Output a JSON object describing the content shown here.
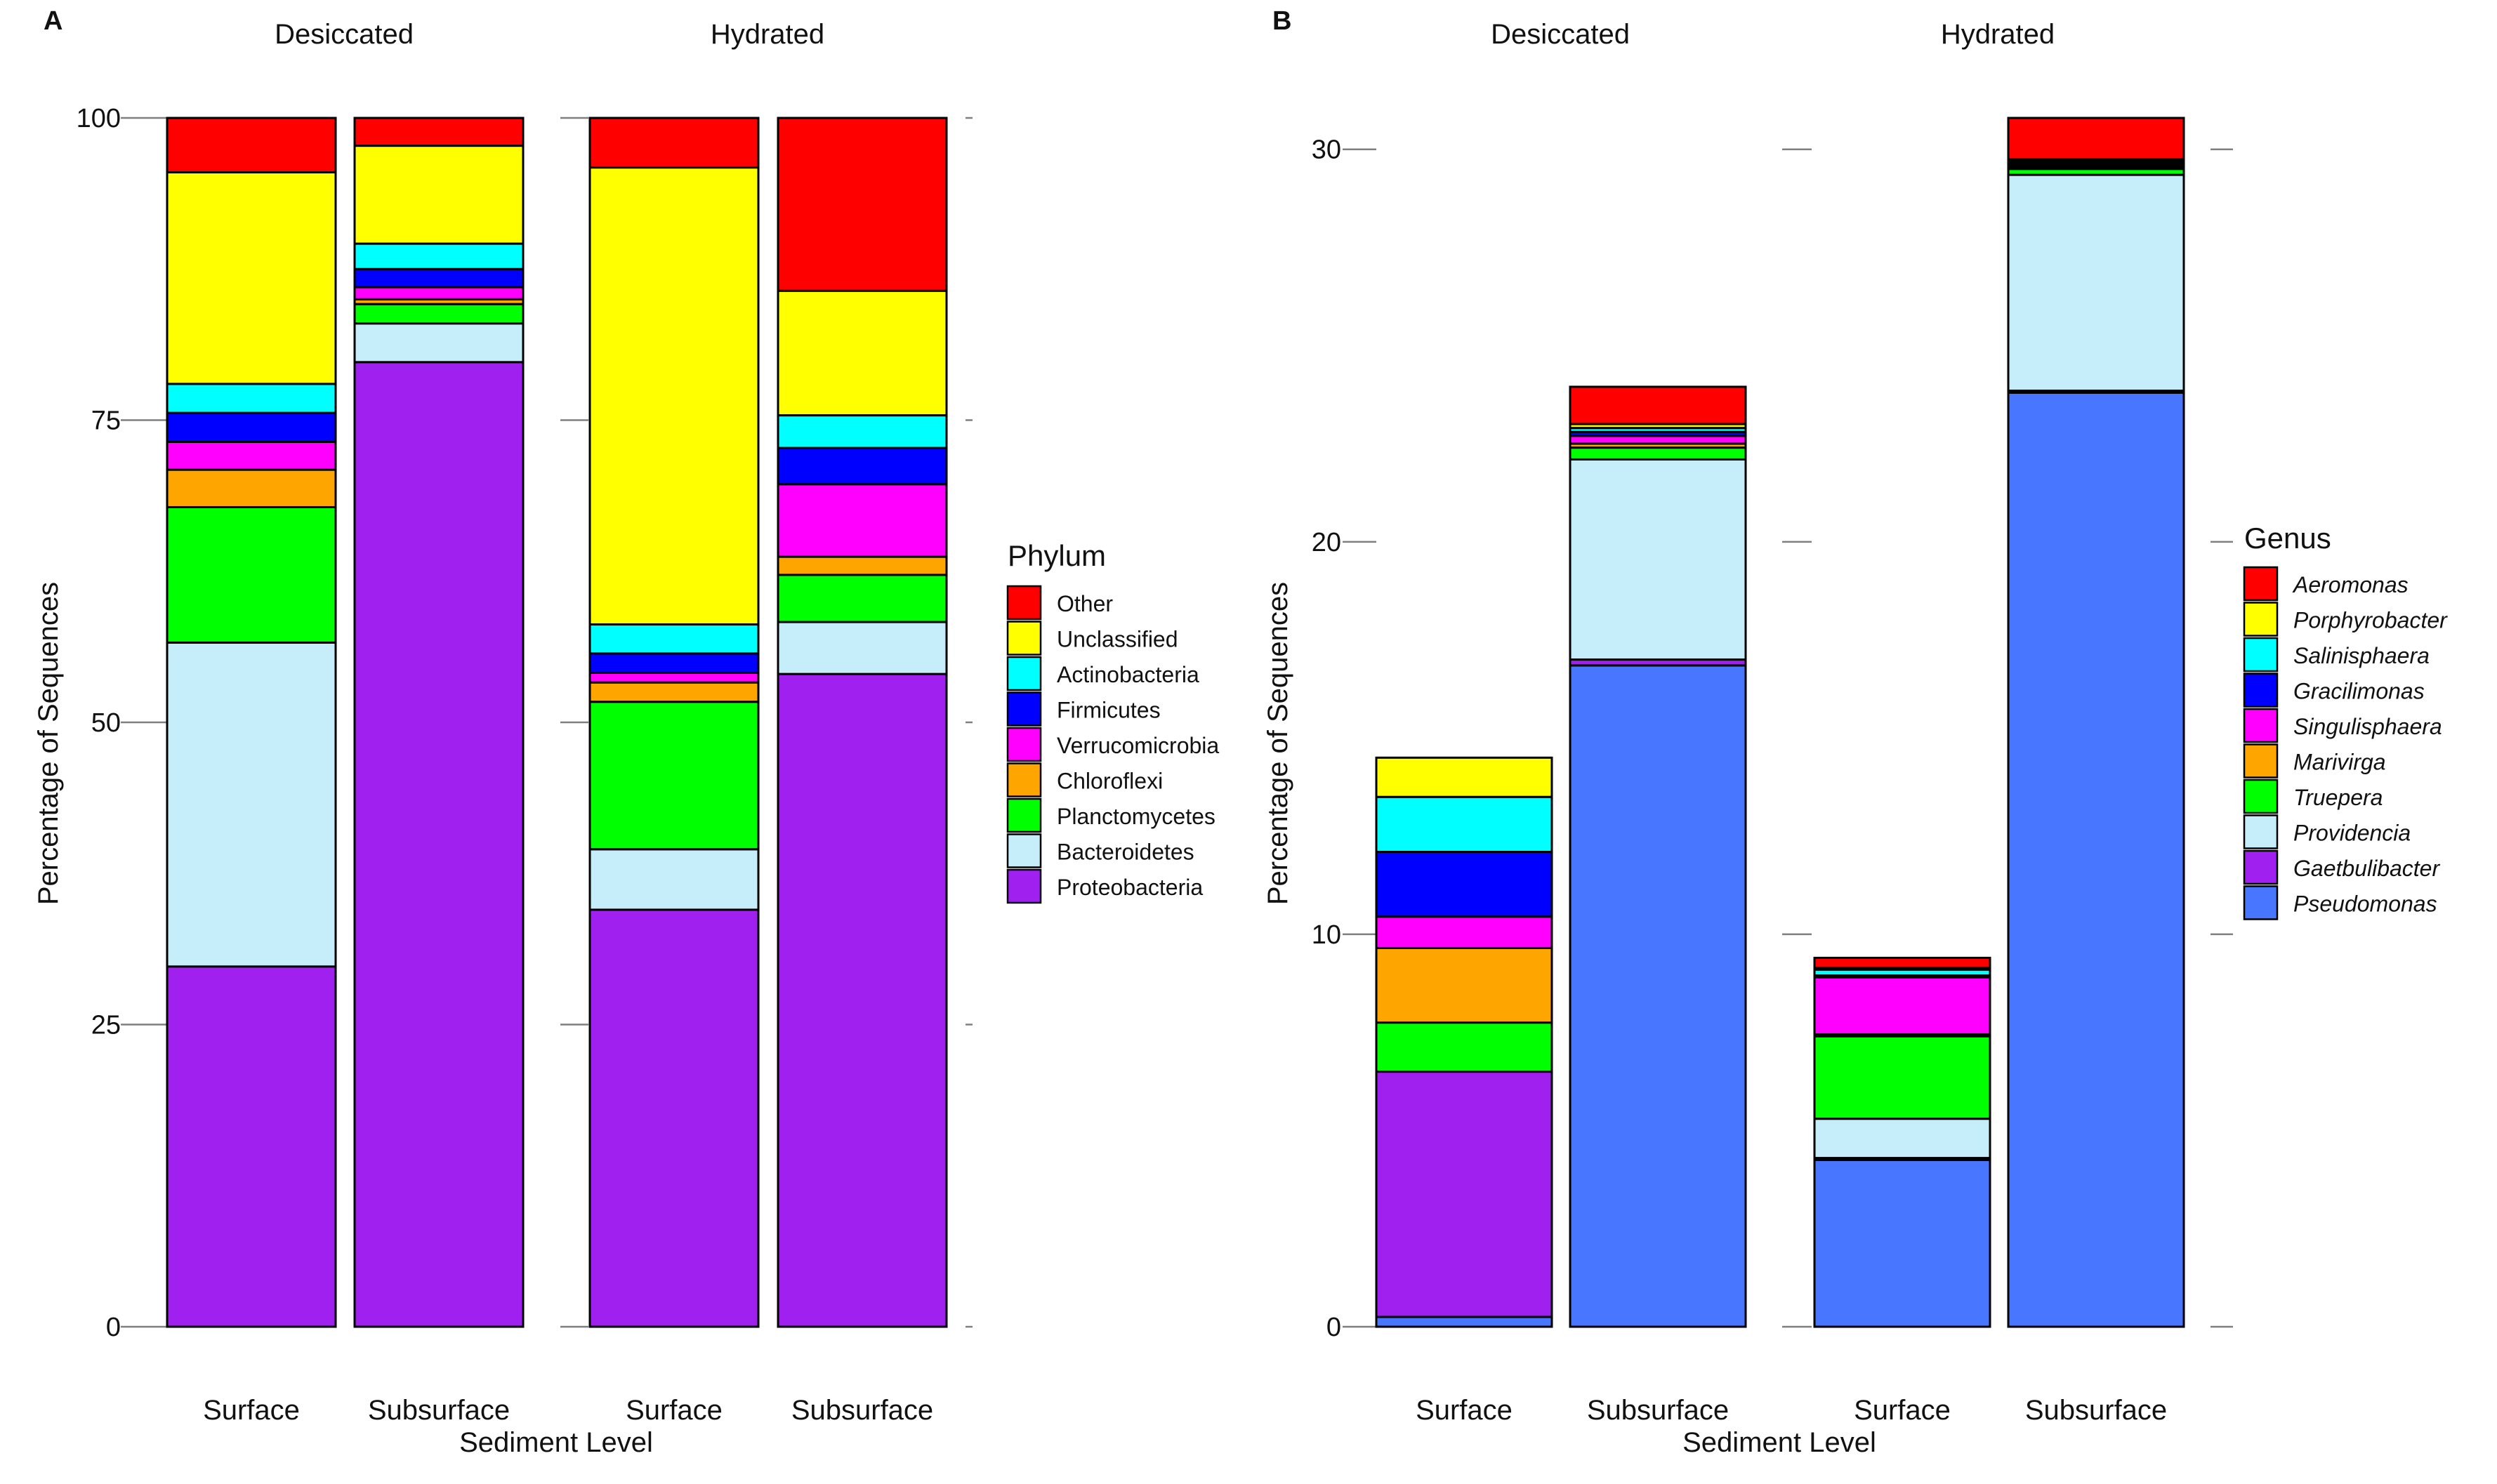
{
  "chart_data": [
    {
      "panel": "A",
      "type": "stacked-bar",
      "xlabel": "Sediment Level",
      "ylabel": "Percentage of Sequences",
      "ylim": [
        0,
        100
      ],
      "yticks": [
        "0",
        "25",
        "50",
        "75",
        "100"
      ],
      "facets": [
        "Desiccated",
        "Hydrated"
      ],
      "x_labels": [
        "Surface",
        "Subsurface"
      ],
      "legend_title": "Phylum",
      "legend_italic": false,
      "stack_order": [
        "Proteobacteria",
        "Bacteroidetes",
        "Planctomycetes",
        "Chloroflexi",
        "Verrucomicrobia",
        "Firmicutes",
        "Actinobacteria",
        "Unclassified",
        "Other"
      ],
      "legend": [
        "Other",
        "Unclassified",
        "Actinobacteria",
        "Firmicutes",
        "Verrucomicrobia",
        "Chloroflexi",
        "Planctomycetes",
        "Bacteroidetes",
        "Proteobacteria"
      ],
      "colors": {
        "Other": "#ff0000",
        "Unclassified": "#ffff00",
        "Actinobacteria": "#00ffff",
        "Firmicutes": "#0000ff",
        "Verrucomicrobia": "#ff00ff",
        "Chloroflexi": "#ffa500",
        "Planctomycetes": "#00ff00",
        "Bacteroidetes": "#c6eefa",
        "Proteobacteria": "#a020f0"
      },
      "bars": [
        {
          "facet": "Desiccated",
          "label": "Surface",
          "values": {
            "Proteobacteria": 29.8,
            "Bacteroidetes": 26.8,
            "Planctomycetes": 11.2,
            "Chloroflexi": 3.1,
            "Verrucomicrobia": 2.3,
            "Firmicutes": 2.4,
            "Actinobacteria": 2.4,
            "Unclassified": 17.5,
            "Other": 4.5
          }
        },
        {
          "facet": "Desiccated",
          "label": "Subsurface",
          "values": {
            "Proteobacteria": 79.8,
            "Bacteroidetes": 3.2,
            "Planctomycetes": 1.6,
            "Chloroflexi": 0.4,
            "Verrucomicrobia": 1.0,
            "Firmicutes": 1.5,
            "Actinobacteria": 2.1,
            "Unclassified": 8.1,
            "Other": 2.3
          }
        },
        {
          "facet": "Hydrated",
          "label": "Surface",
          "values": {
            "Proteobacteria": 34.5,
            "Bacteroidetes": 5.0,
            "Planctomycetes": 12.2,
            "Chloroflexi": 1.6,
            "Verrucomicrobia": 0.8,
            "Firmicutes": 1.6,
            "Actinobacteria": 2.4,
            "Unclassified": 37.8,
            "Other": 4.1
          }
        },
        {
          "facet": "Hydrated",
          "label": "Subsurface",
          "values": {
            "Proteobacteria": 54.0,
            "Bacteroidetes": 4.3,
            "Planctomycetes": 3.9,
            "Chloroflexi": 1.5,
            "Verrucomicrobia": 6.0,
            "Firmicutes": 3.0,
            "Actinobacteria": 2.7,
            "Unclassified": 10.3,
            "Other": 14.3
          }
        }
      ]
    },
    {
      "panel": "B",
      "type": "stacked-bar",
      "xlabel": "Sediment Level",
      "ylabel": "Percentage of Sequences",
      "ylim": [
        0,
        30.8
      ],
      "yticks": [
        "0",
        "10",
        "20",
        "30"
      ],
      "facets": [
        "Desiccated",
        "Hydrated"
      ],
      "x_labels": [
        "Surface",
        "Subsurface"
      ],
      "legend_title": "Genus",
      "legend_italic": true,
      "stack_order": [
        "Pseudomonas",
        "Gaetbulibacter",
        "Providencia",
        "Truepera",
        "Marivirga",
        "Singulisphaera",
        "Gracilimonas",
        "Salinisphaera",
        "Porphyrobacter",
        "Aeromonas"
      ],
      "legend": [
        "Aeromonas",
        "Porphyrobacter",
        "Salinisphaera",
        "Gracilimonas",
        "Singulisphaera",
        "Marivirga",
        "Truepera",
        "Providencia",
        "Gaetbulibacter",
        "Pseudomonas"
      ],
      "colors": {
        "Aeromonas": "#ff0000",
        "Porphyrobacter": "#ffff00",
        "Salinisphaera": "#00ffff",
        "Gracilimonas": "#0000ff",
        "Singulisphaera": "#ff00ff",
        "Marivirga": "#ffa500",
        "Truepera": "#00ff00",
        "Providencia": "#c6eefa",
        "Gaetbulibacter": "#a020f0",
        "Pseudomonas": "#4876ff"
      },
      "bars": [
        {
          "facet": "Desiccated",
          "label": "Surface",
          "values": {
            "Pseudomonas": 0.25,
            "Gaetbulibacter": 6.25,
            "Providencia": 0,
            "Truepera": 1.25,
            "Marivirga": 1.9,
            "Singulisphaera": 0.8,
            "Gracilimonas": 1.65,
            "Salinisphaera": 1.4,
            "Porphyrobacter": 1.0,
            "Aeromonas": 0
          }
        },
        {
          "facet": "Desiccated",
          "label": "Subsurface",
          "values": {
            "Pseudomonas": 16.85,
            "Gaetbulibacter": 0.15,
            "Providencia": 5.1,
            "Truepera": 0.3,
            "Marivirga": 0.1,
            "Singulisphaera": 0.2,
            "Gracilimonas": 0.1,
            "Salinisphaera": 0.1,
            "Porphyrobacter": 0.1,
            "Aeromonas": 0.95
          }
        },
        {
          "facet": "Hydrated",
          "label": "Surface",
          "values": {
            "Pseudomonas": 4.25,
            "Gaetbulibacter": 0.05,
            "Providencia": 1.0,
            "Truepera": 2.1,
            "Marivirga": 0.05,
            "Singulisphaera": 1.45,
            "Gracilimonas": 0.05,
            "Salinisphaera": 0.15,
            "Porphyrobacter": 0.05,
            "Aeromonas": 0.25
          }
        },
        {
          "facet": "Hydrated",
          "label": "Subsurface",
          "values": {
            "Pseudomonas": 23.8,
            "Gaetbulibacter": 0.05,
            "Providencia": 5.5,
            "Truepera": 0.15,
            "Marivirga": 0.05,
            "Singulisphaera": 0.05,
            "Gracilimonas": 0.05,
            "Salinisphaera": 0.05,
            "Porphyrobacter": 0.05,
            "Aeromonas": 1.05
          }
        }
      ]
    }
  ]
}
